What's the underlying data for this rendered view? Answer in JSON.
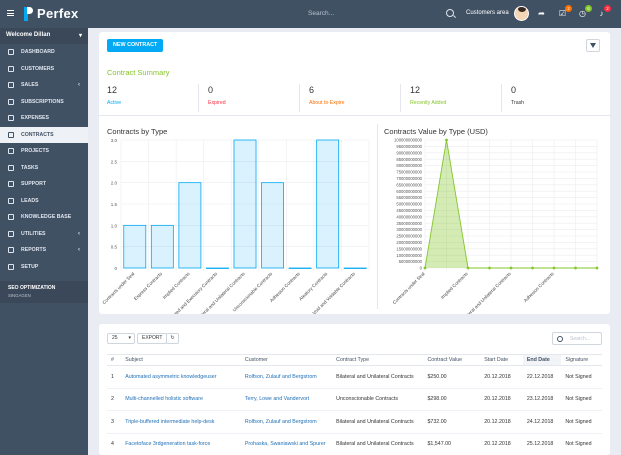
{
  "app": {
    "name": "Perfex",
    "search_placeholder": "Search...",
    "customers_area": "Customers area"
  },
  "topbar": {
    "badges": [
      {
        "icon": "tasks-icon",
        "count": "2"
      },
      {
        "icon": "timer-icon",
        "count": "6"
      },
      {
        "icon": "bell-icon",
        "count": "2"
      }
    ]
  },
  "sidebar": {
    "welcome": "Welcome Dillan",
    "items": [
      {
        "label": "DASHBOARD",
        "icon": "dashboard-icon"
      },
      {
        "label": "CUSTOMERS",
        "icon": "users-icon"
      },
      {
        "label": "SALES",
        "icon": "balance-icon",
        "chevron": "‹"
      },
      {
        "label": "SUBSCRIPTIONS",
        "icon": "repeat-icon"
      },
      {
        "label": "EXPENSES",
        "icon": "file-icon"
      },
      {
        "label": "CONTRACTS",
        "icon": "contract-icon",
        "active": true
      },
      {
        "label": "PROJECTS",
        "icon": "bars-icon"
      },
      {
        "label": "TASKS",
        "icon": "tasks-icon"
      },
      {
        "label": "SUPPORT",
        "icon": "ticket-icon"
      },
      {
        "label": "LEADS",
        "icon": "tty-icon"
      },
      {
        "label": "KNOWLEDGE BASE",
        "icon": "folder-icon"
      },
      {
        "label": "UTILITIES",
        "icon": "cogs-icon",
        "chevron": "‹"
      },
      {
        "label": "REPORTS",
        "icon": "chart-icon",
        "chevron": "‹"
      },
      {
        "label": "SETUP",
        "icon": "gear-icon"
      }
    ],
    "seo_title": "SEO OPTIMIZATION",
    "seo_sub": "SINGAGEN"
  },
  "main": {
    "new_contract": "NEW CONTRACT",
    "summary_title": "Contract Summary",
    "stats": [
      {
        "value": "12",
        "label": "Active",
        "color": "#03a9f4"
      },
      {
        "value": "0",
        "label": "Expired",
        "color": "#fc2d42"
      },
      {
        "value": "6",
        "label": "About to Expire",
        "color": "#ff6f00"
      },
      {
        "value": "12",
        "label": "Recently Added",
        "color": "#84c529"
      },
      {
        "value": "0",
        "label": "Trash",
        "color": "#333333"
      }
    ]
  },
  "chart_data": [
    {
      "type": "bar",
      "title": "Contracts by Type",
      "categories": [
        "Contracts under Seal",
        "Express Contracts",
        "Implied Contracts",
        "Executed and Executory Contracts",
        "Bilateral and Unilateral Contracts",
        "Unconscionable Contracts",
        "Adhesion Contracts",
        "Aleatory Contracts",
        "Void and Voidable Contracts"
      ],
      "values": [
        1,
        1,
        2,
        0,
        3,
        2,
        0,
        3,
        0
      ],
      "yticks": [
        "3.0",
        "2.5",
        "2.0",
        "1.5",
        "1.0",
        "0.5",
        "0"
      ],
      "ylim": [
        0,
        3
      ],
      "color": "#03a9f4"
    },
    {
      "type": "area",
      "title": "Contracts Value by Type (USD)",
      "categories": [
        "Contracts under Seal",
        "Express Contracts",
        "Implied Contracts",
        "Executed and Executory Contracts",
        "Bilateral and Unilateral Contracts",
        "Unconscionable Contracts",
        "Adhesion Contracts",
        "Aleatory Contracts",
        "Void and Voidable Contracts"
      ],
      "shown_labels": [
        "Contracts under Seal",
        "Implied Contracts",
        "Bilateral and Unilateral Contracts",
        "Adhesion Contracts"
      ],
      "values": [
        0,
        100000000000,
        0,
        0,
        0,
        0,
        0,
        0,
        0
      ],
      "yticks": [
        "100000000000",
        "95000000000",
        "90000000000",
        "85000000000",
        "80000000000",
        "75000000000",
        "70000000000",
        "65000000000",
        "60000000000",
        "55000000000",
        "50000000000",
        "45000000000",
        "40000000000",
        "35000000000",
        "30000000000",
        "25000000000",
        "20000000000",
        "15000000000",
        "10000000000",
        "5000000000",
        "0"
      ],
      "ylim": [
        0,
        100000000000
      ],
      "color": "#84c529"
    }
  ],
  "table": {
    "page_size": "25",
    "export": "EXPORT",
    "search_placeholder": "Search...",
    "columns": [
      "#",
      "Subject",
      "Customer",
      "Contract Type",
      "Contract Value",
      "Start Date",
      "End Date",
      "Signature"
    ],
    "sorted_column": "End Date",
    "rows": [
      [
        "1",
        "Automated asymmetric knowledgeuser",
        "Rolfson, Zulauf and Bergstrom",
        "Bilateral and Unilateral Contracts",
        "$250.00",
        "20.12.2018",
        "22.12.2018",
        "Not Signed"
      ],
      [
        "2",
        "Multi-channelled holistic software",
        "Terry, Lowe and Vandervort",
        "Unconscionable Contracts",
        "$298.00",
        "20.12.2018",
        "23.12.2018",
        "Not Signed"
      ],
      [
        "3",
        "Triple-buffered intermediate help-desk",
        "Rolfson, Zulauf and Bergstrom",
        "Bilateral and Unilateral Contracts",
        "$732.00",
        "20.12.2018",
        "24.12.2018",
        "Not Signed"
      ],
      [
        "4",
        "Facetoface 3rdgeneration task-force",
        "Prohaska, Swaniawski and Spurer",
        "Bilateral and Unilateral Contracts",
        "$1,547.00",
        "20.12.2018",
        "25.12.2018",
        "Not Signed"
      ]
    ]
  }
}
